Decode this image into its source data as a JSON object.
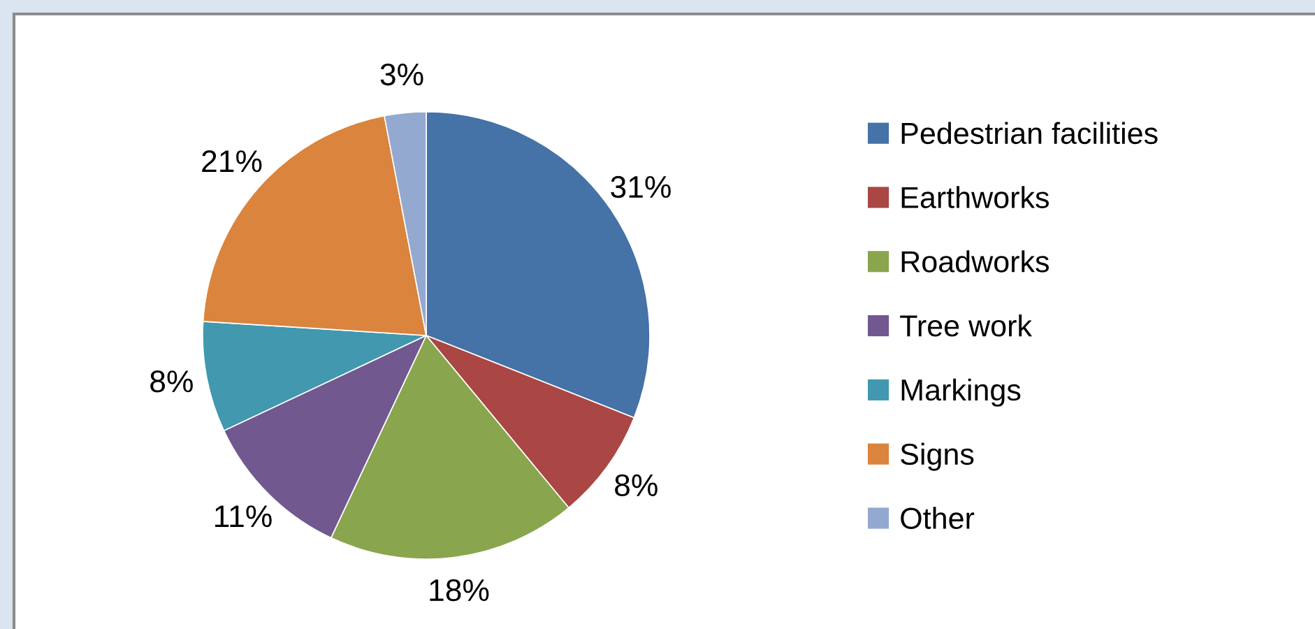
{
  "chart_data": {
    "type": "pie",
    "categories": [
      "Pedestrian facilities",
      "Earthworks",
      "Roadworks",
      "Tree work",
      "Markings",
      "Signs",
      "Other"
    ],
    "values": [
      31,
      8,
      18,
      11,
      8,
      21,
      3
    ],
    "colors": [
      "#4572a7",
      "#aa4643",
      "#89a54e",
      "#71588f",
      "#4198af",
      "#db843d",
      "#93a9cf"
    ],
    "value_labels": [
      "31%",
      "8%",
      "18%",
      "11%",
      "8%",
      "21%",
      "3%"
    ],
    "legend": "right"
  }
}
